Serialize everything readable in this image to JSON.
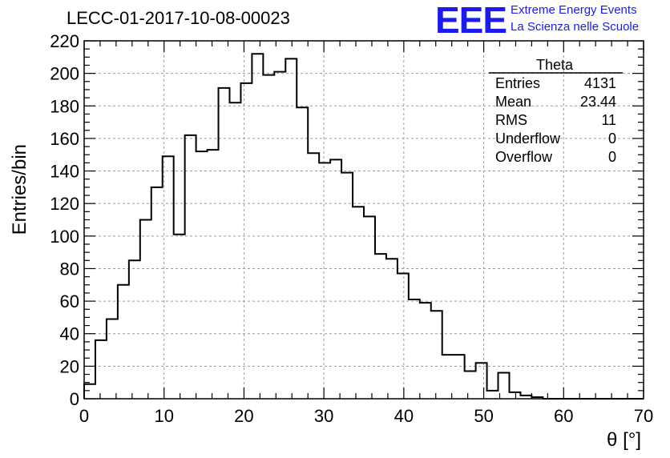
{
  "header": {
    "run_title": "LECC-01-2017-10-08-00023",
    "logo_text": "EEE",
    "logo_line1": "Extreme Energy Events",
    "logo_line2": "La Scienza nelle Scuole",
    "logo_color": "#1b1bf0"
  },
  "stats": {
    "name": "Theta",
    "rows": [
      {
        "label": "Entries",
        "value": "4131"
      },
      {
        "label": "Mean",
        "value": "23.44"
      },
      {
        "label": "RMS",
        "value": "11"
      },
      {
        "label": "Underflow",
        "value": "0"
      },
      {
        "label": "Overflow",
        "value": "0"
      }
    ]
  },
  "chart_data": {
    "type": "histogram",
    "xlabel": "θ [°]",
    "ylabel": "Entries/bin",
    "xlim": [
      0,
      70
    ],
    "ylim": [
      0,
      220
    ],
    "grid": true,
    "bin_width": 1.4,
    "x_ticks": [
      0,
      10,
      20,
      30,
      40,
      50,
      60,
      70
    ],
    "x_tick_labels": [
      "0",
      "10",
      "20",
      "30",
      "40",
      "50",
      "60",
      "70"
    ],
    "y_ticks": [
      0,
      20,
      40,
      60,
      80,
      100,
      120,
      140,
      160,
      180,
      200,
      220
    ],
    "y_tick_labels": [
      "0",
      "20",
      "40",
      "60",
      "80",
      "100",
      "120",
      "140",
      "160",
      "180",
      "200",
      "220"
    ],
    "bin_edges_start": 0,
    "values": [
      9,
      36,
      49,
      70,
      85,
      110,
      130,
      149,
      101,
      162,
      152,
      153,
      191,
      182,
      194,
      212,
      199,
      201,
      209,
      179,
      151,
      145,
      147,
      139,
      118,
      112,
      89,
      86,
      77,
      61,
      59,
      54,
      27,
      27,
      17,
      22,
      5,
      16,
      4,
      2,
      1,
      0,
      0,
      0,
      0,
      0,
      0,
      0,
      0,
      0
    ]
  }
}
